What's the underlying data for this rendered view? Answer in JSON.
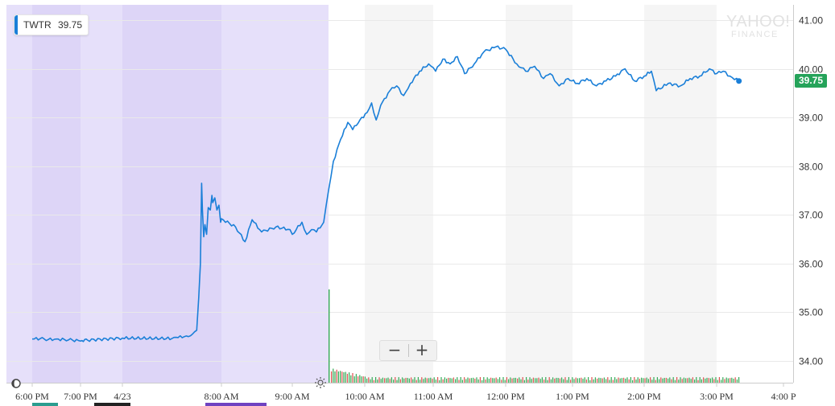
{
  "legend": {
    "symbol": "TWTR",
    "value": "39.75"
  },
  "price_badge": {
    "value": "39.75"
  },
  "watermark": {
    "line1": "YAHOO!",
    "line2": "FINANCE"
  },
  "zoom": {
    "minus": "−",
    "plus": "+"
  },
  "icons": {
    "moon": "moon-icon",
    "sun": "sun-icon"
  },
  "colors": {
    "line": "#1a7fd8",
    "badge": "#25a35a",
    "premarket": "#e6e0fa",
    "premarket_overnight": "#ddd5f7",
    "alt_band": "#f5f5f5",
    "grid": "#e9e9e9",
    "volume_up": "#33aa55",
    "volume_down": "#e05050",
    "strip_green": "#2a9d8f",
    "strip_black": "#222222",
    "strip_purple": "#6f42c1"
  },
  "chart_data": {
    "type": "line",
    "symbol": "TWTR",
    "ylim": [
      33.65,
      41.25
    ],
    "y_ticks": [
      "34.00",
      "35.00",
      "36.00",
      "37.00",
      "38.00",
      "39.00",
      "40.00",
      "41.00"
    ],
    "x_ticks": [
      "6:00 PM",
      "7:00 PM",
      "4/23",
      "8:00 AM",
      "9:00 AM",
      "10:00 AM",
      "11:00 AM",
      "12:00 PM",
      "1:00 PM",
      "2:00 PM",
      "3:00 PM",
      "4:00 PM"
    ],
    "x_tick_labels_shown": [
      "6:00 PM",
      "7:00 PM",
      "4/23",
      "8:00 AM",
      "9:00 AM",
      "10:00 AM",
      "11:00 AM",
      "12:00 PM",
      "1:00 PM",
      "2:00 PM",
      "3:00 PM",
      "4:00 P"
    ],
    "last_price": 39.75,
    "grid": true,
    "series": [
      {
        "points": [
          [
            "6:00 PM",
            34.45
          ],
          [
            "6:10 PM",
            34.46
          ],
          [
            "6:20 PM",
            34.44
          ],
          [
            "6:30 PM",
            34.45
          ],
          [
            "6:40 PM",
            34.44
          ],
          [
            "6:50 PM",
            34.43
          ],
          [
            "7:00 PM",
            34.41
          ],
          [
            "7:10 PM",
            34.42
          ],
          [
            "7:20 PM",
            34.4
          ],
          [
            "7:30 PM",
            34.44
          ],
          [
            "7:40 PM",
            34.45
          ],
          [
            "7:50 PM",
            34.43
          ],
          [
            "4/23",
            34.47
          ],
          [
            "4/23 4:00 AM",
            34.46
          ],
          [
            "4/23 4:30 AM",
            34.48
          ],
          [
            "4/23 5:00 AM",
            34.5
          ],
          [
            "4/23 5:20 AM",
            34.5
          ],
          [
            "4/23 5:50 AM",
            34.6
          ],
          [
            "4/23 6:00 AM",
            34.63
          ],
          [
            "4/23 6:10 AM",
            35.3
          ],
          [
            "4/23 6:18 AM",
            36.0
          ],
          [
            "4/23 6:24 AM",
            37.65
          ],
          [
            "4/23 6:28 AM",
            37.1
          ],
          [
            "4/23 6:34 AM",
            36.55
          ],
          [
            "4/23 6:40 AM",
            36.8
          ],
          [
            "4/23 6:48 AM",
            36.6
          ],
          [
            "4/23 6:56 AM",
            37.15
          ],
          [
            "4/23 7:06 AM",
            37.1
          ],
          [
            "4/23 7:14 AM",
            37.4
          ],
          [
            "4/23 7:18 AM",
            37.25
          ],
          [
            "4/23 7:28 AM",
            37.35
          ],
          [
            "4/23 7:38 AM",
            37.1
          ],
          [
            "4/23 7:48 AM",
            37.2
          ],
          [
            "4/23 7:56 AM",
            36.85
          ],
          [
            "4/23 8:00 AM",
            36.92
          ],
          [
            "4/23 8:12 AM",
            36.75
          ],
          [
            "4/23 8:20 AM",
            36.45
          ],
          [
            "4/23 8:26 AM",
            36.9
          ],
          [
            "4/23 8:34 AM",
            36.65
          ],
          [
            "4/23 8:46 AM",
            36.75
          ],
          [
            "4/23 8:58 AM",
            36.7
          ],
          [
            "4/23 9:00 AM",
            36.6
          ],
          [
            "4/23 9:08 AM",
            36.85
          ],
          [
            "4/23 9:12 AM",
            36.6
          ],
          [
            "4/23 9:16 AM",
            36.7
          ],
          [
            "4/23 9:20 AM",
            36.65
          ],
          [
            "4/23 9:26 AM",
            36.85
          ],
          [
            "4/23 9:30 AM",
            37.5
          ],
          [
            "4/23 9:34 AM",
            38.1
          ],
          [
            "4/23 9:40 AM",
            38.55
          ],
          [
            "4/23 9:46 AM",
            38.9
          ],
          [
            "4/23 9:50 AM",
            38.75
          ],
          [
            "4/23 9:56 AM",
            38.95
          ],
          [
            "4/23 10:02 AM",
            39.1
          ],
          [
            "4/23 10:06 AM",
            39.3
          ],
          [
            "4/23 10:10 AM",
            38.95
          ],
          [
            "4/23 10:14 AM",
            39.25
          ],
          [
            "4/23 10:22 AM",
            39.55
          ],
          [
            "4/23 10:28 AM",
            39.65
          ],
          [
            "4/23 10:34 AM",
            39.45
          ],
          [
            "4/23 10:40 AM",
            39.7
          ],
          [
            "4/23 10:48 AM",
            39.95
          ],
          [
            "4/23 10:56 AM",
            40.1
          ],
          [
            "4/23 11:02 AM",
            39.95
          ],
          [
            "4/23 11:08 AM",
            40.2
          ],
          [
            "4/23 11:14 AM",
            40.1
          ],
          [
            "4/23 11:20 AM",
            40.25
          ],
          [
            "4/23 11:26 AM",
            39.9
          ],
          [
            "4/23 11:34 AM",
            40.1
          ],
          [
            "4/23 11:42 AM",
            40.35
          ],
          [
            "4/23 11:52 AM",
            40.45
          ],
          [
            "4/23 12:00 PM",
            40.4
          ],
          [
            "4/23 12:10 PM",
            40.1
          ],
          [
            "4/23 12:18 PM",
            39.95
          ],
          [
            "4/23 12:26 PM",
            40.05
          ],
          [
            "4/23 12:34 PM",
            39.8
          ],
          [
            "4/23 12:40 PM",
            39.9
          ],
          [
            "4/23 12:48 PM",
            39.65
          ],
          [
            "4/23 12:56 PM",
            39.8
          ],
          [
            "4/23 1:04 PM",
            39.7
          ],
          [
            "4/23 1:12 PM",
            39.8
          ],
          [
            "4/23 1:20 PM",
            39.65
          ],
          [
            "4/23 1:28 PM",
            39.75
          ],
          [
            "4/23 1:36 PM",
            39.85
          ],
          [
            "4/23 1:44 PM",
            40.0
          ],
          [
            "4/23 1:52 PM",
            39.75
          ],
          [
            "4/23 2:00 PM",
            39.85
          ],
          [
            "4/23 2:06 PM",
            39.95
          ],
          [
            "4/23 2:10 PM",
            39.55
          ],
          [
            "4/23 2:20 PM",
            39.7
          ],
          [
            "4/23 2:30 PM",
            39.65
          ],
          [
            "4/23 2:38 PM",
            39.8
          ],
          [
            "4/23 2:46 PM",
            39.85
          ],
          [
            "4/23 2:54 PM",
            40.0
          ],
          [
            "4/23 3:00 PM",
            39.9
          ],
          [
            "4/23 3:06 PM",
            39.95
          ],
          [
            "4/23 3:12 PM",
            39.85
          ],
          [
            "4/23 3:20 PM",
            39.75
          ]
        ]
      }
    ]
  }
}
